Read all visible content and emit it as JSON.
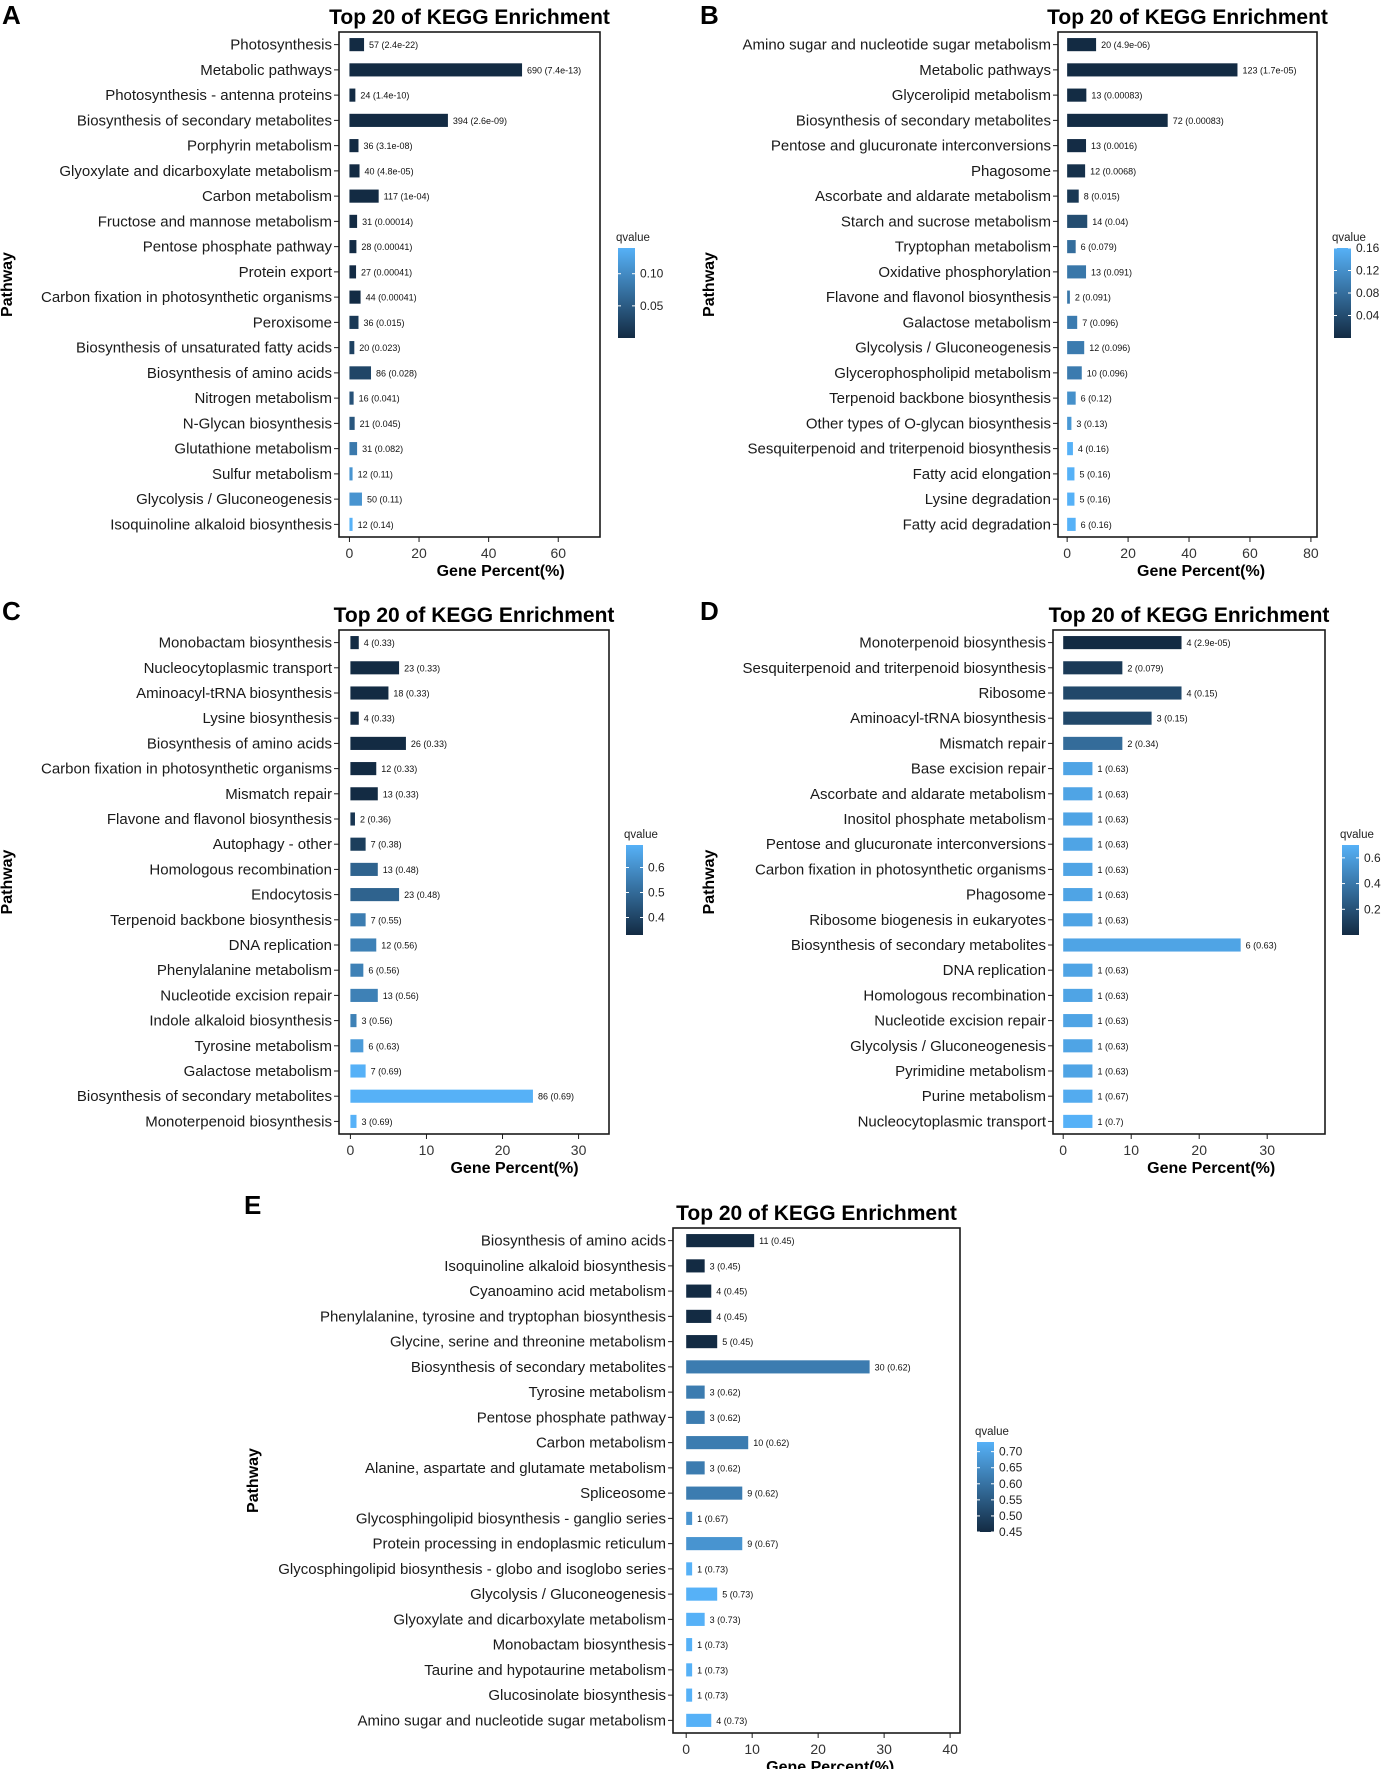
{
  "figure": {
    "xlabel": "Gene Percent(%)",
    "ylabel": "Pathway",
    "legend_title": "qvalue"
  },
  "colors": {
    "dark": "#132b43",
    "light": "#56b1f7",
    "frame": "#1a1a1a"
  },
  "chart_data": [
    {
      "panel": "A",
      "type": "bar",
      "orientation": "horizontal",
      "title": "Top 20 of KEGG Enrichment",
      "xlabel": "Gene Percent(%)",
      "ylabel": "Pathway",
      "xlim": [
        -3,
        72
      ],
      "xticks": [
        0,
        20,
        40,
        60
      ],
      "qlim": [
        0.0,
        0.14
      ],
      "legend_ticks": [
        0.1,
        0.05
      ],
      "legend_tick_labels": [
        "0.10",
        "0.05"
      ],
      "categories": [
        "Photosynthesis",
        "Metabolic pathways",
        "Photosynthesis - antenna proteins",
        "Biosynthesis of secondary metabolites",
        "Porphyrin metabolism",
        "Glyoxylate and dicarboxylate metabolism",
        "Carbon metabolism",
        "Fructose and mannose metabolism",
        "Pentose phosphate pathway",
        "Protein export",
        "Carbon fixation in photosynthetic organisms",
        "Peroxisome",
        "Biosynthesis of unsaturated fatty acids",
        "Biosynthesis of amino acids",
        "Nitrogen metabolism",
        "N-Glycan biosynthesis",
        "Glutathione metabolism",
        "Sulfur metabolism",
        "Glycolysis / Gluconeogenesis",
        "Isoquinoline alkaloid biosynthesis"
      ],
      "values": [
        4.2,
        49.6,
        1.7,
        28.3,
        2.6,
        2.9,
        8.4,
        2.2,
        2.0,
        1.9,
        3.2,
        2.6,
        1.4,
        6.2,
        1.2,
        1.5,
        2.2,
        0.9,
        3.6,
        0.9
      ],
      "qvalues": [
        2.4e-22,
        7.4e-13,
        1.4e-10,
        2.6e-09,
        3.1e-08,
        4.8e-05,
        0.0001,
        0.00014,
        0.00041,
        0.00041,
        0.00041,
        0.015,
        0.023,
        0.028,
        0.041,
        0.045,
        0.082,
        0.11,
        0.11,
        0.14
      ],
      "bar_labels": [
        "57 (2.4e-22)",
        "690 (7.4e-13)",
        "24 (1.4e-10)",
        "394 (2.6e-09)",
        "36 (3.1e-08)",
        "40 (4.8e-05)",
        "117 (1e-04)",
        "31 (0.00014)",
        "28 (0.00041)",
        "27 (0.00041)",
        "44 (0.00041)",
        "36 (0.015)",
        "20 (0.023)",
        "86 (0.028)",
        "16 (0.041)",
        "21 (0.045)",
        "31 (0.082)",
        "12 (0.11)",
        "50 (0.11)",
        "12 (0.14)"
      ]
    },
    {
      "panel": "B",
      "type": "bar",
      "orientation": "horizontal",
      "title": "Top 20 of KEGG Enrichment",
      "xlabel": "Gene Percent(%)",
      "ylabel": "Pathway",
      "xlim": [
        -3,
        82
      ],
      "xticks": [
        0,
        20,
        40,
        60,
        80
      ],
      "qlim": [
        0.0,
        0.16
      ],
      "legend_ticks": [
        0.16,
        0.12,
        0.08,
        0.04
      ],
      "legend_tick_labels": [
        "0.16",
        "0.12",
        "0.08",
        "0.04"
      ],
      "categories": [
        "Amino sugar and nucleotide sugar metabolism",
        "Metabolic pathways",
        "Glycerolipid metabolism",
        "Biosynthesis of secondary metabolites",
        "Pentose and glucuronate interconversions",
        "Phagosome",
        "Ascorbate and aldarate metabolism",
        "Starch and sucrose metabolism",
        "Tryptophan metabolism",
        "Oxidative phosphorylation",
        "Flavone and flavonol biosynthesis",
        "Galactose metabolism",
        "Glycolysis / Gluconeogenesis",
        "Glycerophospholipid metabolism",
        "Terpenoid backbone biosynthesis",
        "Other types of O-glycan biosynthesis",
        "Sesquiterpenoid and triterpenoid biosynthesis",
        "Fatty acid elongation",
        "Lysine degradation",
        "Fatty acid degradation"
      ],
      "values": [
        9.5,
        55.9,
        6.3,
        33.0,
        6.2,
        5.9,
        3.8,
        6.6,
        2.8,
        6.2,
        0.9,
        3.3,
        5.6,
        4.8,
        2.8,
        1.4,
        1.9,
        2.4,
        2.4,
        2.8
      ],
      "qvalues": [
        4.9e-06,
        1.7e-05,
        0.00083,
        0.00083,
        0.0016,
        0.0068,
        0.015,
        0.04,
        0.079,
        0.091,
        0.091,
        0.096,
        0.096,
        0.096,
        0.12,
        0.13,
        0.16,
        0.16,
        0.16,
        0.16
      ],
      "bar_labels": [
        "20 (4.9e-06)",
        "123 (1.7e-05)",
        "13 (0.00083)",
        "72 (0.00083)",
        "13 (0.0016)",
        "12 (0.0068)",
        "8 (0.015)",
        "14 (0.04)",
        "6 (0.079)",
        "13 (0.091)",
        "2 (0.091)",
        "7 (0.096)",
        "12 (0.096)",
        "10 (0.096)",
        "6 (0.12)",
        "3 (0.13)",
        "4 (0.16)",
        "5 (0.16)",
        "5 (0.16)",
        "6 (0.16)"
      ]
    },
    {
      "panel": "C",
      "type": "bar",
      "orientation": "horizontal",
      "title": "Top 20 of KEGG Enrichment",
      "xlabel": "Gene Percent(%)",
      "ylabel": "Pathway",
      "xlim": [
        -1.5,
        34
      ],
      "xticks": [
        0,
        10,
        20,
        30
      ],
      "qlim": [
        0.33,
        0.69
      ],
      "legend_ticks": [
        0.6,
        0.5,
        0.4
      ],
      "legend_tick_labels": [
        "0.6",
        "0.5",
        "0.4"
      ],
      "categories": [
        "Monobactam biosynthesis",
        "Nucleocytoplasmic transport",
        "Aminoacyl-tRNA biosynthesis",
        "Lysine biosynthesis",
        "Biosynthesis of amino acids",
        "Carbon fixation in photosynthetic organisms",
        "Mismatch repair",
        "Flavone and flavonol biosynthesis",
        "Autophagy - other",
        "Homologous recombination",
        "Endocytosis",
        "Terpenoid backbone biosynthesis",
        "DNA replication",
        "Phenylalanine metabolism",
        "Nucleotide excision repair",
        "Indole alkaloid biosynthesis",
        "Tyrosine metabolism",
        "Galactose metabolism",
        "Biosynthesis of secondary metabolites",
        "Monoterpenoid biosynthesis"
      ],
      "values": [
        1.1,
        6.4,
        5.0,
        1.1,
        7.3,
        3.4,
        3.6,
        0.6,
        2.0,
        3.6,
        6.4,
        2.0,
        3.4,
        1.7,
        3.6,
        0.8,
        1.7,
        2.0,
        24.0,
        0.8
      ],
      "qvalues": [
        0.33,
        0.33,
        0.33,
        0.33,
        0.33,
        0.33,
        0.33,
        0.36,
        0.38,
        0.48,
        0.48,
        0.55,
        0.56,
        0.56,
        0.56,
        0.56,
        0.63,
        0.69,
        0.69,
        0.69
      ],
      "bar_labels": [
        "4 (0.33)",
        "23 (0.33)",
        "18 (0.33)",
        "4 (0.33)",
        "26 (0.33)",
        "12 (0.33)",
        "13 (0.33)",
        "2 (0.36)",
        "7 (0.38)",
        "13 (0.48)",
        "23 (0.48)",
        "7 (0.55)",
        "12 (0.56)",
        "6 (0.56)",
        "13 (0.56)",
        "3 (0.56)",
        "6 (0.63)",
        "7 (0.69)",
        "86 (0.69)",
        "3 (0.69)"
      ]
    },
    {
      "panel": "D",
      "type": "bar",
      "orientation": "horizontal",
      "title": "Top 20 of KEGG Enrichment",
      "xlabel": "Gene Percent(%)",
      "ylabel": "Pathway",
      "xlim": [
        -1.5,
        38.5
      ],
      "xticks": [
        0,
        10,
        20,
        30
      ],
      "qlim": [
        0.0,
        0.7
      ],
      "legend_ticks": [
        0.6,
        0.4,
        0.2
      ],
      "legend_tick_labels": [
        "0.6",
        "0.4",
        "0.2"
      ],
      "categories": [
        "Monoterpenoid biosynthesis",
        "Sesquiterpenoid and triterpenoid biosynthesis",
        "Ribosome",
        "Aminoacyl-tRNA biosynthesis",
        "Mismatch repair",
        "Base excision repair",
        "Ascorbate and aldarate metabolism",
        "Inositol phosphate metabolism",
        "Pentose and glucuronate interconversions",
        "Carbon fixation in photosynthetic organisms",
        "Phagosome",
        "Ribosome biogenesis in eukaryotes",
        "Biosynthesis of secondary metabolites",
        "DNA replication",
        "Homologous recombination",
        "Nucleotide excision repair",
        "Glycolysis / Gluconeogenesis",
        "Pyrimidine metabolism",
        "Purine metabolism",
        "Nucleocytoplasmic transport"
      ],
      "values": [
        17.4,
        8.7,
        17.4,
        13.0,
        8.7,
        4.3,
        4.3,
        4.3,
        4.3,
        4.3,
        4.3,
        4.3,
        26.1,
        4.3,
        4.3,
        4.3,
        4.3,
        4.3,
        4.3,
        4.3
      ],
      "qvalues": [
        2.9e-05,
        0.079,
        0.15,
        0.15,
        0.34,
        0.63,
        0.63,
        0.63,
        0.63,
        0.63,
        0.63,
        0.63,
        0.63,
        0.63,
        0.63,
        0.63,
        0.63,
        0.63,
        0.67,
        0.7
      ],
      "bar_labels": [
        "4 (2.9e-05)",
        "2 (0.079)",
        "4 (0.15)",
        "3 (0.15)",
        "2 (0.34)",
        "1 (0.63)",
        "1 (0.63)",
        "1 (0.63)",
        "1 (0.63)",
        "1 (0.63)",
        "1 (0.63)",
        "1 (0.63)",
        "6 (0.63)",
        "1 (0.63)",
        "1 (0.63)",
        "1 (0.63)",
        "1 (0.63)",
        "1 (0.63)",
        "1 (0.67)",
        "1 (0.7)"
      ]
    },
    {
      "panel": "E",
      "type": "bar",
      "orientation": "horizontal",
      "title": "Top 20 of KEGG Enrichment",
      "xlabel": "Gene Percent(%)",
      "ylabel": "Pathway",
      "xlim": [
        -2,
        41.5
      ],
      "xticks": [
        0,
        10,
        20,
        30,
        40
      ],
      "qlim": [
        0.45,
        0.73
      ],
      "legend_ticks": [
        0.7,
        0.65,
        0.6,
        0.55,
        0.5,
        0.45
      ],
      "legend_tick_labels": [
        "0.70",
        "0.65",
        "0.60",
        "0.55",
        "0.50",
        "0.45"
      ],
      "categories": [
        "Biosynthesis of amino acids",
        "Isoquinoline alkaloid biosynthesis",
        "Cyanoamino acid metabolism",
        "Phenylalanine, tyrosine and tryptophan biosynthesis",
        "Glycine, serine and threonine metabolism",
        "Biosynthesis of secondary metabolites",
        "Tyrosine metabolism",
        "Pentose phosphate pathway",
        "Carbon metabolism",
        "Alanine, aspartate and glutamate metabolism",
        "Spliceosome",
        "Glycosphingolipid biosynthesis - ganglio series",
        "Protein processing in endoplasmic reticulum",
        "Glycosphingolipid biosynthesis - globo and isoglobo series",
        "Glycolysis / Gluconeogenesis",
        "Glyoxylate and dicarboxylate metabolism",
        "Monobactam biosynthesis",
        "Taurine and hypotaurine metabolism",
        "Glucosinolate biosynthesis",
        "Amino sugar and nucleotide sugar metabolism"
      ],
      "values": [
        10.3,
        2.8,
        3.8,
        3.8,
        4.7,
        27.8,
        2.8,
        2.8,
        9.4,
        2.8,
        8.5,
        0.9,
        8.5,
        0.9,
        4.7,
        2.8,
        0.9,
        0.9,
        0.9,
        3.8
      ],
      "qvalues": [
        0.45,
        0.45,
        0.45,
        0.45,
        0.45,
        0.62,
        0.62,
        0.62,
        0.62,
        0.62,
        0.62,
        0.67,
        0.67,
        0.73,
        0.73,
        0.73,
        0.73,
        0.73,
        0.73,
        0.73
      ],
      "bar_labels": [
        "11 (0.45)",
        "3 (0.45)",
        "4 (0.45)",
        "4 (0.45)",
        "5 (0.45)",
        "30 (0.62)",
        "3 (0.62)",
        "3 (0.62)",
        "10 (0.62)",
        "3 (0.62)",
        "9 (0.62)",
        "1 (0.67)",
        "9 (0.67)",
        "1 (0.73)",
        "5 (0.73)",
        "3 (0.73)",
        "1 (0.73)",
        "1 (0.73)",
        "1 (0.73)",
        "4 (0.73)"
      ]
    }
  ]
}
